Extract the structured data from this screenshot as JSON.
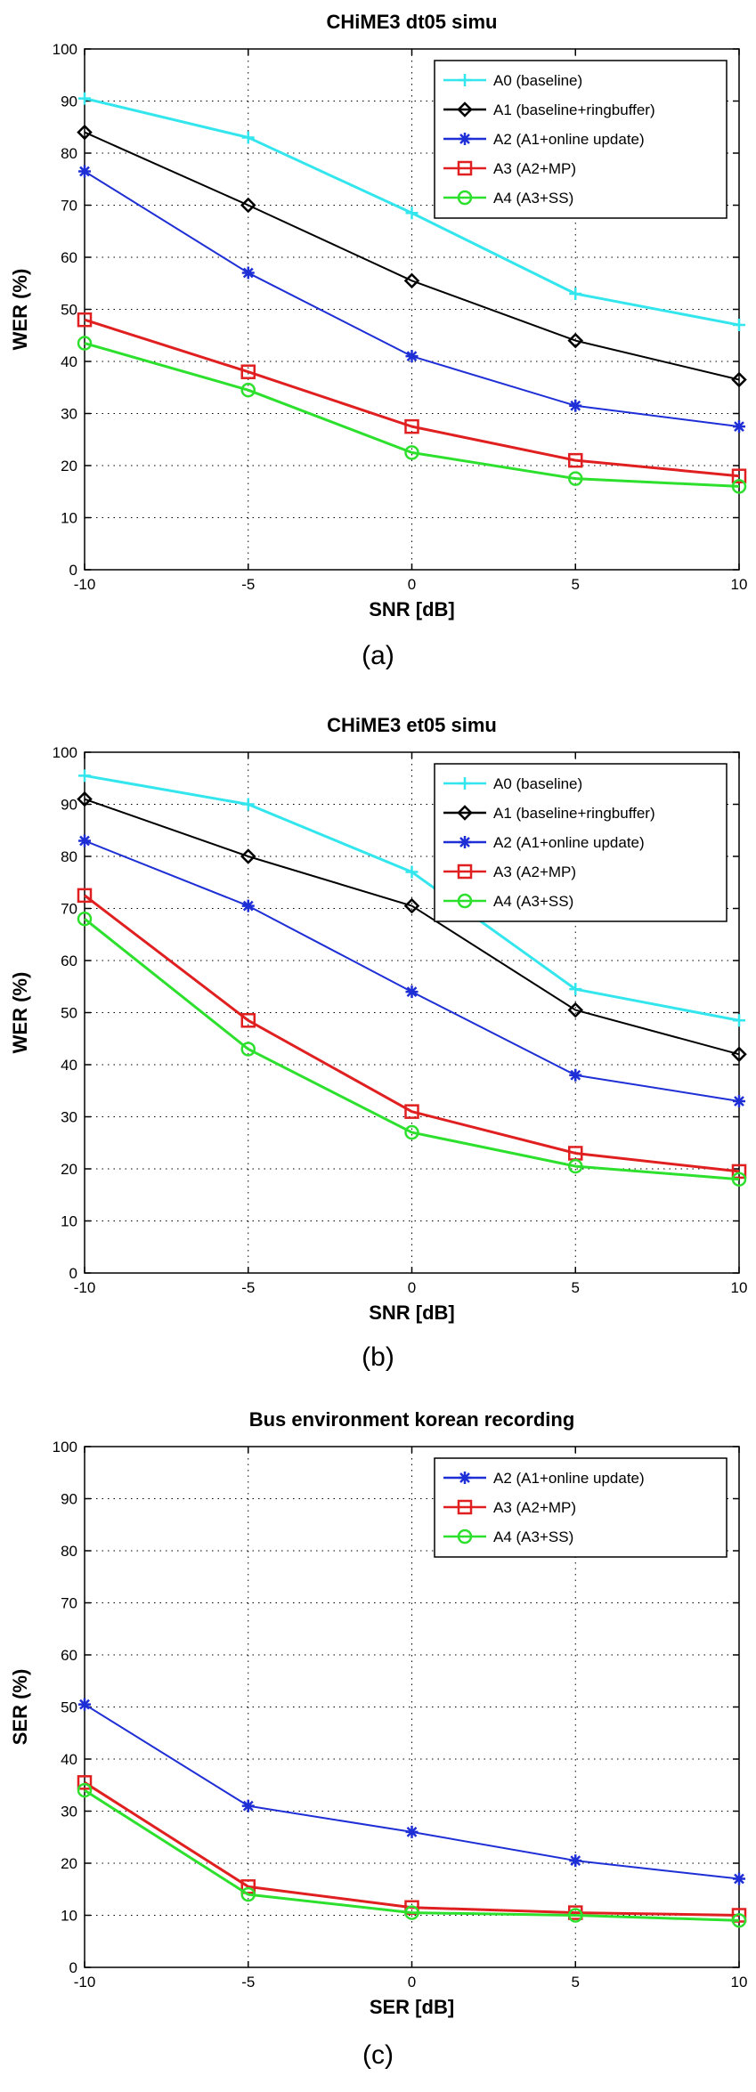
{
  "chart_data": [
    {
      "type": "line",
      "title": "CHiME3 dt05 simu",
      "xlabel": "SNR [dB]",
      "ylabel": "WER (%)",
      "caption": "(a)",
      "x": [
        -10,
        -5,
        0,
        5,
        10
      ],
      "xlim": [
        -10,
        10
      ],
      "ylim": [
        0,
        100
      ],
      "xticks": [
        "-10",
        "-5",
        "0",
        "5",
        "10"
      ],
      "yticks": [
        "0",
        "10",
        "20",
        "30",
        "40",
        "50",
        "60",
        "70",
        "80",
        "90",
        "100"
      ],
      "grid": true,
      "legend_position": "top-right",
      "series": [
        {
          "name": "A0 (baseline)",
          "values": [
            90.5,
            83,
            68.5,
            53,
            47
          ],
          "color": "#33e6ee",
          "marker": "plus"
        },
        {
          "name": "A1 (baseline+ringbuffer)",
          "values": [
            84,
            70,
            55.5,
            44,
            36.5
          ],
          "color": "#000000",
          "marker": "diamond"
        },
        {
          "name": "A2 (A1+online update)",
          "values": [
            76.5,
            57,
            41,
            31.5,
            27.5
          ],
          "color": "#1f2fd6",
          "marker": "star"
        },
        {
          "name": "A3 (A2+MP)",
          "values": [
            48,
            38,
            27.5,
            21,
            18
          ],
          "color": "#e02020",
          "marker": "square"
        },
        {
          "name": "A4 (A3+SS)",
          "values": [
            43.5,
            34.5,
            22.5,
            17.5,
            16
          ],
          "color": "#2ee02e",
          "marker": "circle"
        }
      ]
    },
    {
      "type": "line",
      "title": "CHiME3 et05 simu",
      "xlabel": "SNR [dB]",
      "ylabel": "WER (%)",
      "caption": "(b)",
      "x": [
        -10,
        -5,
        0,
        5,
        10
      ],
      "xlim": [
        -10,
        10
      ],
      "ylim": [
        0,
        100
      ],
      "xticks": [
        "-10",
        "-5",
        "0",
        "5",
        "10"
      ],
      "yticks": [
        "0",
        "10",
        "20",
        "30",
        "40",
        "50",
        "60",
        "70",
        "80",
        "90",
        "100"
      ],
      "grid": true,
      "legend_position": "top-right",
      "series": [
        {
          "name": "A0 (baseline)",
          "values": [
            95.5,
            90,
            77,
            54.5,
            48.5
          ],
          "color": "#33e6ee",
          "marker": "plus"
        },
        {
          "name": "A1 (baseline+ringbuffer)",
          "values": [
            91,
            80,
            70.5,
            50.5,
            42
          ],
          "color": "#000000",
          "marker": "diamond"
        },
        {
          "name": "A2 (A1+online update)",
          "values": [
            83,
            70.5,
            54,
            38,
            33
          ],
          "color": "#1f2fd6",
          "marker": "star"
        },
        {
          "name": "A3 (A2+MP)",
          "values": [
            72.5,
            48.5,
            31,
            23,
            19.5
          ],
          "color": "#e02020",
          "marker": "square"
        },
        {
          "name": "A4 (A3+SS)",
          "values": [
            68,
            43,
            27,
            20.5,
            18
          ],
          "color": "#2ee02e",
          "marker": "circle"
        }
      ]
    },
    {
      "type": "line",
      "title": "Bus environment korean recording",
      "xlabel": "SER [dB]",
      "ylabel": "SER (%)",
      "caption": "(c)",
      "x": [
        -10,
        -5,
        0,
        5,
        10
      ],
      "xlim": [
        -10,
        10
      ],
      "ylim": [
        0,
        100
      ],
      "xticks": [
        "-10",
        "-5",
        "0",
        "5",
        "10"
      ],
      "yticks": [
        "0",
        "10",
        "20",
        "30",
        "40",
        "50",
        "60",
        "70",
        "80",
        "90",
        "100"
      ],
      "grid": true,
      "legend_position": "top-right",
      "series": [
        {
          "name": "A2 (A1+online update)",
          "values": [
            50.5,
            31,
            26,
            20.5,
            17
          ],
          "color": "#1f2fd6",
          "marker": "star"
        },
        {
          "name": "A3 (A2+MP)",
          "values": [
            35.5,
            15.5,
            11.5,
            10.5,
            10
          ],
          "color": "#e02020",
          "marker": "square"
        },
        {
          "name": "A4 (A3+SS)",
          "values": [
            34,
            14,
            10.5,
            10,
            9
          ],
          "color": "#2ee02e",
          "marker": "circle"
        }
      ]
    }
  ]
}
